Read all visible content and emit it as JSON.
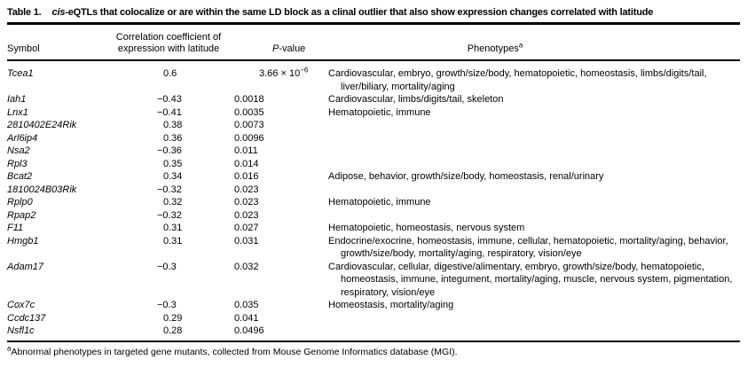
{
  "table": {
    "label": "Table 1.",
    "title_italic": "cis",
    "title_rest": "-eQTLs that colocalize or are within the same LD block as a clinal outlier that also show expression changes correlated with latitude",
    "columns": {
      "symbol": "Symbol",
      "correlation_line1": "Correlation coefficient of",
      "correlation_line2": "expression with latitude",
      "pvalue_italic": "P",
      "pvalue_rest": "-value",
      "phenotypes": "Phenotypes",
      "phenotypes_sup": "a"
    },
    "rows": [
      {
        "symbol": "Tcea1",
        "correlation": "0.6",
        "pvalue": "3.66 × 10^−6",
        "phenotypes": "Cardiovascular, embryo, growth/size/body, hematopoietic, homeostasis, limbs/digits/tail, liver/biliary, mortality/aging"
      },
      {
        "symbol": "Iah1",
        "correlation": "−0.43",
        "pvalue": "0.0018",
        "phenotypes": "Cardiovascular, limbs/digits/tail, skeleton"
      },
      {
        "symbol": "Lnx1",
        "correlation": "−0.41",
        "pvalue": "0.0035",
        "phenotypes": "Hematopoietic, immune"
      },
      {
        "symbol": "2810402E24Rik",
        "correlation": "0.38",
        "pvalue": "0.0073",
        "phenotypes": ""
      },
      {
        "symbol": "Arl6ip4",
        "correlation": "0.36",
        "pvalue": "0.0096",
        "phenotypes": ""
      },
      {
        "symbol": "Nsa2",
        "correlation": "−0.36",
        "pvalue": "0.011",
        "phenotypes": ""
      },
      {
        "symbol": "Rpl3",
        "correlation": "0.35",
        "pvalue": "0.014",
        "phenotypes": ""
      },
      {
        "symbol": "Bcat2",
        "correlation": "0.34",
        "pvalue": "0.016",
        "phenotypes": "Adipose, behavior, growth/size/body, homeostasis, renal/urinary"
      },
      {
        "symbol": "1810024B03Rik",
        "correlation": "−0.32",
        "pvalue": "0.023",
        "phenotypes": ""
      },
      {
        "symbol": "Rplp0",
        "correlation": "0.32",
        "pvalue": "0.023",
        "phenotypes": "Hematopoietic, immune"
      },
      {
        "symbol": "Rpap2",
        "correlation": "−0.32",
        "pvalue": "0.023",
        "phenotypes": ""
      },
      {
        "symbol": "F11",
        "correlation": "0.31",
        "pvalue": "0.027",
        "phenotypes": "Hematopoietic, homeostasis, nervous system"
      },
      {
        "symbol": "Hmgb1",
        "correlation": "0.31",
        "pvalue": "0.031",
        "phenotypes": "Endocrine/exocrine, homeostasis, immune, cellular, hematopoietic, mortality/aging, behavior, growth/size/body, mortality/aging, respiratory, vision/eye"
      },
      {
        "symbol": "Adam17",
        "correlation": "−0.3",
        "pvalue": "0.032",
        "phenotypes": "Cardiovascular, cellular, digestive/alimentary, embryo, growth/size/body, hematopoietic, homeostasis, immune, integument, mortality/aging, muscle, nervous system, pigmentation, respiratory, vision/eye"
      },
      {
        "symbol": "Cox7c",
        "correlation": "−0.3",
        "pvalue": "0.035",
        "phenotypes": "Homeostasis, mortality/aging"
      },
      {
        "symbol": "Ccdc137",
        "correlation": "0.29",
        "pvalue": "0.041",
        "phenotypes": ""
      },
      {
        "symbol": "Nsfl1c",
        "correlation": "0.28",
        "pvalue": "0.0496",
        "phenotypes": ""
      }
    ],
    "footnote_sup": "a",
    "footnote": "Abnormal phenotypes in targeted gene mutants, collected from Mouse Genome Informatics database (MGI)."
  }
}
